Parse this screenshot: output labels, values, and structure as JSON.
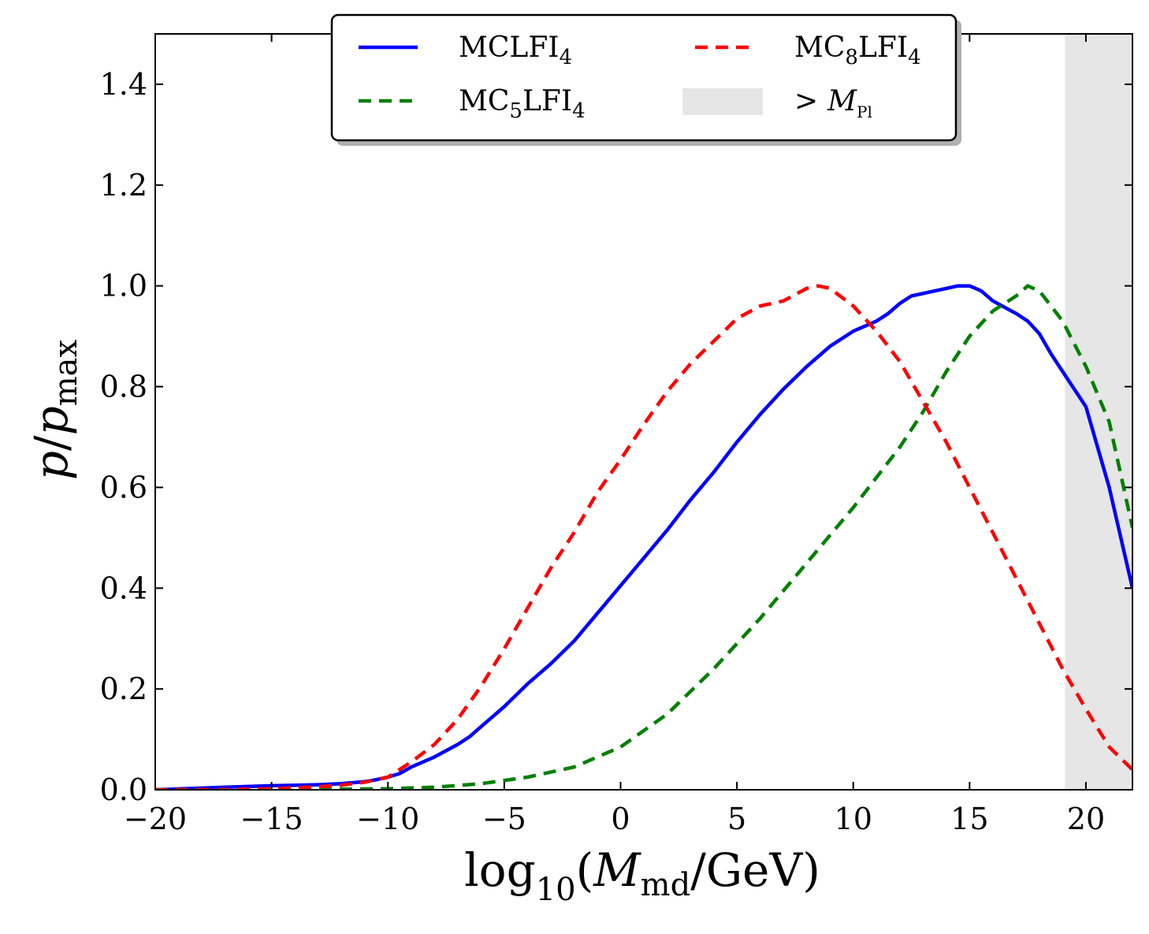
{
  "chart_data": {
    "type": "line",
    "title": "",
    "xlabel": {
      "base": "log",
      "base_sub": "10",
      "open": "(",
      "var": "M",
      "var_sub": "md",
      "rest": "/GeV)"
    },
    "ylabel": {
      "var": "p",
      "slash": "/",
      "var2": "p",
      "var2_sub": "max"
    },
    "xlim": [
      -20,
      22
    ],
    "ylim": [
      0,
      1.5
    ],
    "xticks": [
      -20,
      -15,
      -10,
      -5,
      0,
      5,
      10,
      15,
      20
    ],
    "xtick_labels": [
      "−20",
      "−15",
      "−10",
      "−5",
      "0",
      "5",
      "10",
      "15",
      "20"
    ],
    "yticks": [
      0.0,
      0.2,
      0.4,
      0.6,
      0.8,
      1.0,
      1.2,
      1.4
    ],
    "ytick_labels": [
      "0.0",
      "0.2",
      "0.4",
      "0.6",
      "0.8",
      "1.0",
      "1.2",
      "1.4"
    ],
    "shaded_region": {
      "x_from": 19.1,
      "x_to": 22,
      "color": "#e6e6e6",
      "legend_label": {
        "prefix": ">",
        "var": "M",
        "sub": "Pl"
      }
    },
    "series": [
      {
        "name": "MCLFI4",
        "label": {
          "main": "MCLFI",
          "sub": "4",
          "pre_main": "",
          "pre_sub": ""
        },
        "color": "#0000ff",
        "style": "solid",
        "x": [
          -20,
          -17,
          -15,
          -13,
          -12,
          -11,
          -10.5,
          -10,
          -9.5,
          -9,
          -8,
          -7,
          -6.5,
          -6,
          -5,
          -4,
          -3,
          -2,
          -1,
          0,
          1,
          2,
          3,
          4,
          5,
          6,
          7,
          8,
          9,
          10,
          11,
          11.5,
          12,
          12.5,
          13,
          14,
          14.5,
          15,
          15.5,
          16,
          17,
          17.5,
          18,
          18.5,
          19,
          20,
          21,
          22
        ],
        "y": [
          0.0,
          0.005,
          0.008,
          0.01,
          0.012,
          0.016,
          0.02,
          0.025,
          0.032,
          0.045,
          0.065,
          0.09,
          0.105,
          0.125,
          0.165,
          0.21,
          0.25,
          0.295,
          0.35,
          0.405,
          0.46,
          0.515,
          0.575,
          0.63,
          0.69,
          0.745,
          0.795,
          0.84,
          0.88,
          0.91,
          0.93,
          0.945,
          0.965,
          0.98,
          0.985,
          0.995,
          1.0,
          1.0,
          0.99,
          0.97,
          0.945,
          0.93,
          0.905,
          0.865,
          0.83,
          0.76,
          0.6,
          0.4
        ]
      },
      {
        "name": "MC5LFI4",
        "label": {
          "pre_main": "MC",
          "pre_sub": "5",
          "main": "LFI",
          "sub": "4"
        },
        "color": "#008000",
        "style": "dashed",
        "x": [
          -20,
          -15,
          -10,
          -8,
          -6,
          -4,
          -2,
          0,
          2,
          4,
          6,
          8,
          10,
          12,
          13,
          14,
          15,
          16,
          17,
          17.5,
          18,
          19,
          20,
          21,
          22
        ],
        "y": [
          0.0,
          0.0,
          0.002,
          0.005,
          0.012,
          0.025,
          0.045,
          0.085,
          0.15,
          0.24,
          0.34,
          0.45,
          0.56,
          0.68,
          0.75,
          0.83,
          0.9,
          0.95,
          0.98,
          1.0,
          0.99,
          0.93,
          0.84,
          0.73,
          0.52
        ]
      },
      {
        "name": "MC8LFI4",
        "label": {
          "pre_main": "MC",
          "pre_sub": "8",
          "main": "LFI",
          "sub": "4"
        },
        "color": "#ff0000",
        "style": "dashed",
        "x": [
          -20,
          -17,
          -15,
          -13,
          -12,
          -11,
          -10,
          -9,
          -8,
          -7,
          -6,
          -5,
          -4,
          -3,
          -2,
          -1,
          0,
          1,
          2,
          3,
          4,
          5,
          6,
          7,
          8,
          8.5,
          9,
          10,
          11,
          12,
          13,
          14,
          15,
          16,
          17,
          18,
          19,
          20,
          21,
          22
        ],
        "y": [
          0.0,
          0.0,
          0.002,
          0.006,
          0.009,
          0.015,
          0.025,
          0.055,
          0.09,
          0.14,
          0.205,
          0.28,
          0.36,
          0.44,
          0.51,
          0.59,
          0.655,
          0.725,
          0.79,
          0.845,
          0.89,
          0.935,
          0.96,
          0.97,
          0.995,
          1.0,
          0.995,
          0.96,
          0.91,
          0.85,
          0.77,
          0.69,
          0.6,
          0.51,
          0.42,
          0.33,
          0.24,
          0.16,
          0.085,
          0.04
        ]
      }
    ],
    "legend": {
      "placement": "top-center",
      "columns": 2
    }
  }
}
